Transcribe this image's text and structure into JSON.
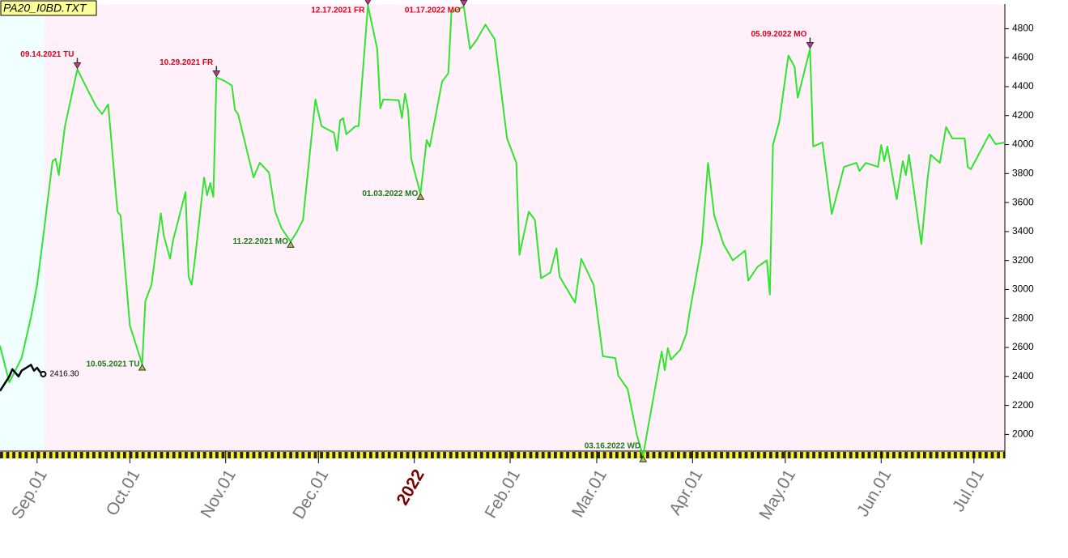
{
  "chart_data": {
    "type": "line",
    "title": "PA20_I0BD.TXT",
    "xlim": [
      "2021-08-20",
      "2022-07-11"
    ],
    "ylim": [
      1840,
      4970
    ],
    "yticks": [
      2000,
      2200,
      2400,
      2600,
      2800,
      3000,
      3200,
      3400,
      3600,
      3800,
      4000,
      4200,
      4400,
      4600,
      4800
    ],
    "xticks": [
      {
        "value": "2021-09-01",
        "label": "Sep.01"
      },
      {
        "value": "2021-10-01",
        "label": "Oct.01"
      },
      {
        "value": "2021-11-01",
        "label": "Nov.01"
      },
      {
        "value": "2021-12-01",
        "label": "Dec.01"
      },
      {
        "value": "2022-01-01",
        "label": "2022"
      },
      {
        "value": "2022-02-01",
        "label": "Feb.01"
      },
      {
        "value": "2022-03-01",
        "label": "Mar.01"
      },
      {
        "value": "2022-04-01",
        "label": "Apr.01"
      },
      {
        "value": "2022-05-01",
        "label": "May.01"
      },
      {
        "value": "2022-06-01",
        "label": "Jun.01"
      },
      {
        "value": "2022-07-01",
        "label": "Jul.01"
      }
    ],
    "series": [
      {
        "color": "#2ee62e",
        "x": [
          "2021-08-20",
          "2021-08-23",
          "2021-08-27",
          "2021-08-30",
          "2021-09-01",
          "2021-09-03",
          "2021-09-06",
          "2021-09-07",
          "2021-09-08",
          "2021-09-10",
          "2021-09-14",
          "2021-09-16",
          "2021-09-20",
          "2021-09-22",
          "2021-09-24",
          "2021-09-27",
          "2021-09-28",
          "2021-10-01",
          "2021-10-05",
          "2021-10-06",
          "2021-10-08",
          "2021-10-11",
          "2021-10-12",
          "2021-10-14",
          "2021-10-15",
          "2021-10-19",
          "2021-10-20",
          "2021-10-21",
          "2021-10-22",
          "2021-10-25",
          "2021-10-26",
          "2021-10-27",
          "2021-10-28",
          "2021-10-29",
          "2021-11-01",
          "2021-11-03",
          "2021-11-04",
          "2021-11-05",
          "2021-11-10",
          "2021-11-12",
          "2021-11-15",
          "2021-11-17",
          "2021-11-19",
          "2021-11-22",
          "2021-11-24",
          "2021-11-26",
          "2021-11-30",
          "2021-12-02",
          "2021-12-06",
          "2021-12-07",
          "2021-12-08",
          "2021-12-09",
          "2021-12-10",
          "2021-12-13",
          "2021-12-14",
          "2021-12-17",
          "2021-12-20",
          "2021-12-21",
          "2021-12-22",
          "2021-12-27",
          "2021-12-28",
          "2021-12-29",
          "2021-12-30",
          "2021-12-31",
          "2022-01-03",
          "2022-01-05",
          "2022-01-06",
          "2022-01-10",
          "2022-01-12",
          "2022-01-13",
          "2022-01-17",
          "2022-01-19",
          "2022-01-21",
          "2022-01-24",
          "2022-01-27",
          "2022-01-31",
          "2022-02-03",
          "2022-02-04",
          "2022-02-07",
          "2022-02-09",
          "2022-02-11",
          "2022-02-14",
          "2022-02-16",
          "2022-02-17",
          "2022-02-22",
          "2022-02-24",
          "2022-02-28",
          "2022-03-03",
          "2022-03-07",
          "2022-03-08",
          "2022-03-11",
          "2022-03-14",
          "2022-03-16",
          "2022-03-17",
          "2022-03-22",
          "2022-03-23",
          "2022-03-24",
          "2022-03-25",
          "2022-03-28",
          "2022-03-30",
          "2022-03-31",
          "2022-04-04",
          "2022-04-06",
          "2022-04-08",
          "2022-04-11",
          "2022-04-14",
          "2022-04-18",
          "2022-04-19",
          "2022-04-22",
          "2022-04-25",
          "2022-04-26",
          "2022-04-27",
          "2022-04-29",
          "2022-05-02",
          "2022-05-04",
          "2022-05-05",
          "2022-05-09",
          "2022-05-10",
          "2022-05-13",
          "2022-05-16",
          "2022-05-20",
          "2022-05-24",
          "2022-05-25",
          "2022-05-27",
          "2022-05-31",
          "2022-06-01",
          "2022-06-02",
          "2022-06-03",
          "2022-06-06",
          "2022-06-08",
          "2022-06-09",
          "2022-06-10",
          "2022-06-14",
          "2022-06-15",
          "2022-06-16",
          "2022-06-17",
          "2022-06-20",
          "2022-06-22",
          "2022-06-24",
          "2022-06-28",
          "2022-06-29",
          "2022-06-30",
          "2022-07-06",
          "2022-07-08",
          "2022-07-11"
        ],
        "values": [
          2612,
          2359,
          2527,
          2808,
          3033,
          3369,
          3886,
          3902,
          3790,
          4127,
          4520,
          4435,
          4267,
          4211,
          4278,
          3538,
          3510,
          2752,
          2483,
          2920,
          3033,
          3526,
          3369,
          3212,
          3341,
          3672,
          3089,
          3033,
          3201,
          3773,
          3650,
          3734,
          3640,
          4464,
          4435,
          4407,
          4239,
          4211,
          3773,
          3874,
          3807,
          3538,
          3425,
          3330,
          3397,
          3481,
          4312,
          4127,
          4082,
          3958,
          4166,
          4183,
          4071,
          4127,
          4127,
          4960,
          4660,
          4250,
          4312,
          4306,
          4183,
          4351,
          4239,
          3900,
          3661,
          4031,
          3987,
          4435,
          4492,
          4912,
          4952,
          4660,
          4716,
          4828,
          4727,
          4043,
          3874,
          3239,
          3537,
          3481,
          3077,
          3117,
          3285,
          3089,
          2909,
          3212,
          3033,
          2539,
          2527,
          2404,
          2314,
          1994,
          1850,
          1978,
          2572,
          2443,
          2595,
          2516,
          2584,
          2696,
          2836,
          3313,
          3874,
          3510,
          3313,
          3201,
          3268,
          3061,
          3156,
          3201,
          2965,
          3998,
          4155,
          4615,
          4536,
          4323,
          4660,
          3987,
          4015,
          3521,
          3846,
          3874,
          3818,
          3874,
          3846,
          3998,
          3886,
          3987,
          3622,
          3886,
          3790,
          3930,
          3313,
          3538,
          3762,
          3930,
          3874,
          4121,
          4043,
          4043,
          3846,
          3830,
          4071,
          4003,
          4015
        ]
      },
      {
        "color": "#000000",
        "x": [
          "2021-08-20",
          "2021-08-23",
          "2021-08-24",
          "2021-08-26",
          "2021-08-27",
          "2021-08-30",
          "2021-08-31",
          "2021-09-01",
          "2021-09-02",
          "2021-09-03"
        ],
        "values": [
          2300,
          2400,
          2450,
          2400,
          2440,
          2480,
          2440,
          2460,
          2430,
          2416.3
        ],
        "value_labels": [
          null,
          null,
          null,
          null,
          null,
          null,
          null,
          null,
          null,
          "2416.30"
        ]
      }
    ],
    "annotations": [
      {
        "x": "2021-09-14",
        "text": "09.14.2021 TU",
        "kind": "high"
      },
      {
        "x": "2021-10-29",
        "text": "10.29.2021 FR",
        "kind": "high"
      },
      {
        "x": "2021-12-17",
        "text": "12.17.2021 FR",
        "kind": "high"
      },
      {
        "x": "2022-01-17",
        "text": "01.17.2022 MO",
        "kind": "high"
      },
      {
        "x": "2022-05-09",
        "text": "05.09.2022 MO",
        "kind": "high"
      },
      {
        "x": "2021-10-05",
        "text": "10.05.2021 TU",
        "kind": "low"
      },
      {
        "x": "2021-11-22",
        "text": "11.22.2021 MO",
        "kind": "low"
      },
      {
        "x": "2022-01-03",
        "text": "01.03.2022 MO",
        "kind": "low"
      },
      {
        "x": "2022-03-16",
        "text": "03.16.2022 WD",
        "kind": "low"
      }
    ]
  }
}
